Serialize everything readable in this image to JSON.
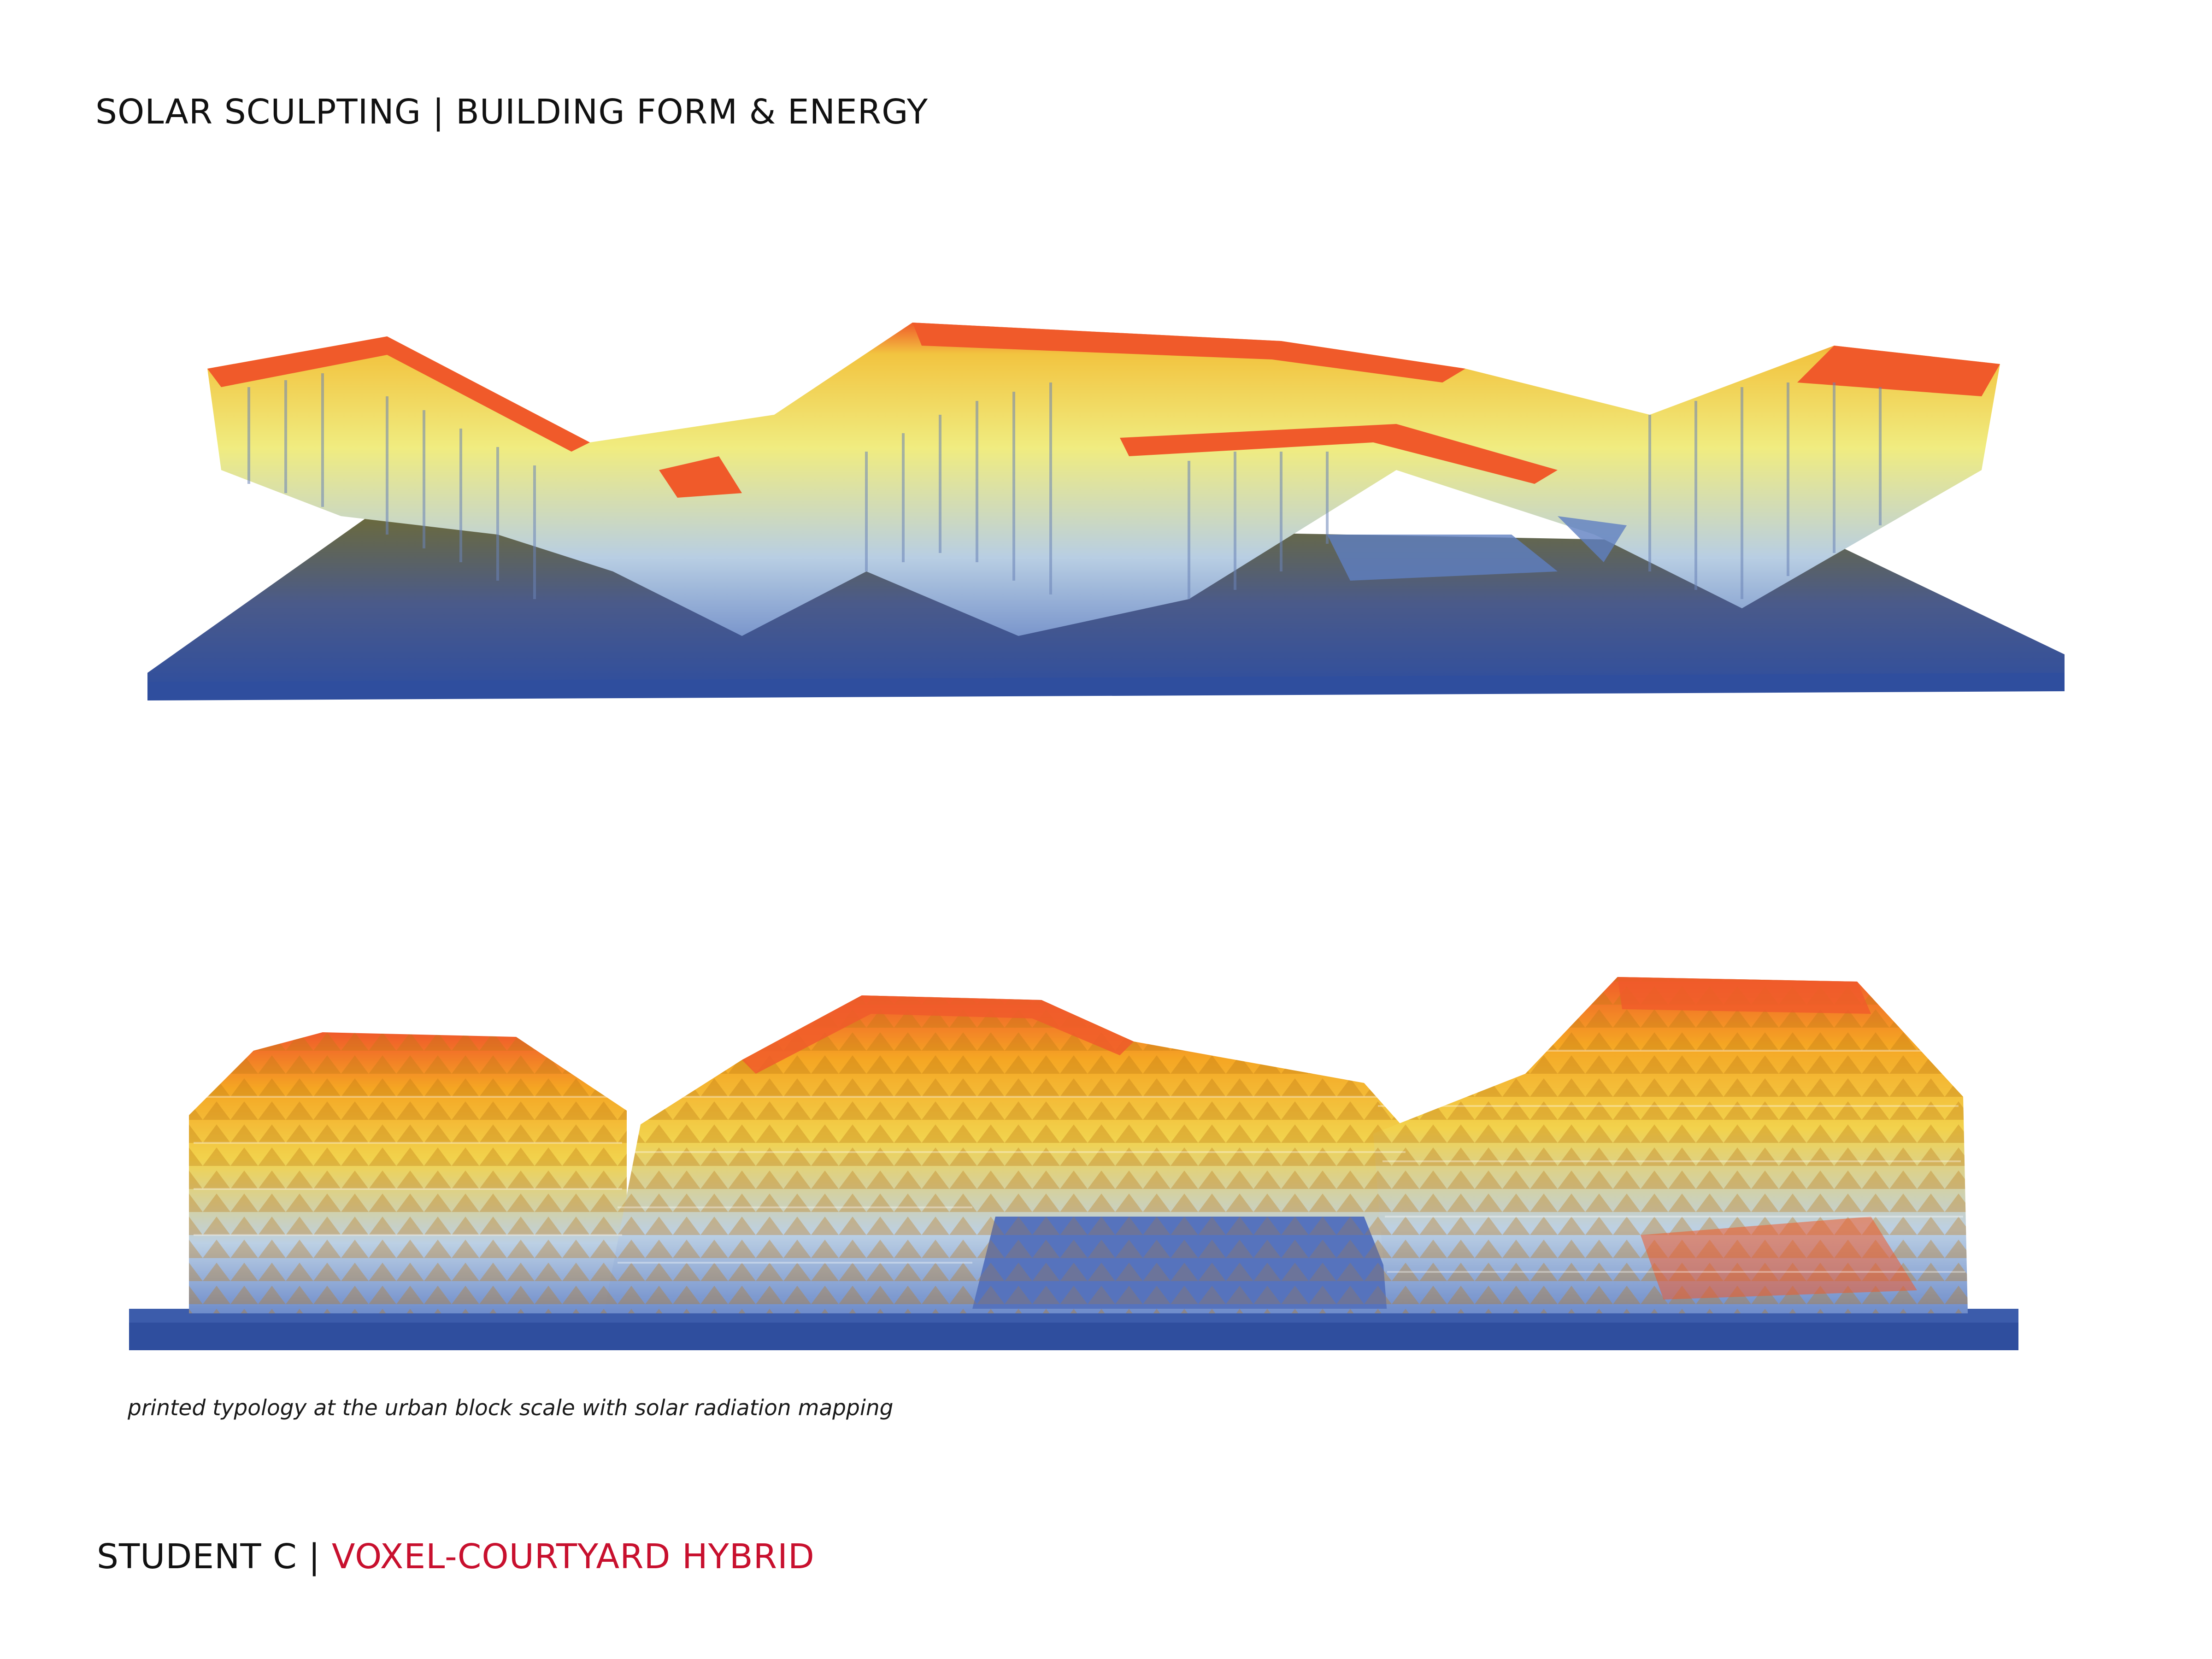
{
  "header": {
    "title": "SOLAR SCULPTING | BUILDING FORM & ENERGY"
  },
  "figures": {
    "top_model": {
      "icon": "voxel-model-photo-side-view"
    },
    "bottom_model": {
      "icon": "voxel-model-photo-front-view"
    },
    "caption": "printed typology at the urban block scale with solar radiation mapping"
  },
  "footer": {
    "student": "STUDENT C | ",
    "project": "VOXEL-COURTYARD HYBRID",
    "highlight_color": "#c8102e"
  },
  "palette": {
    "high_radiation": "#f05a2a",
    "mid_radiation": "#f5a623",
    "low_mid_radiation": "#f2e55c",
    "low_radiation": "#a9c4dc",
    "base": "#3a5ba6"
  }
}
